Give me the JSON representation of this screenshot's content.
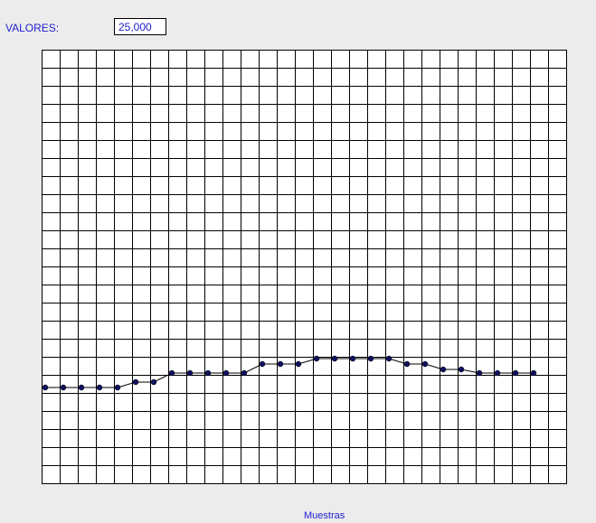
{
  "header": {
    "label": "VALORES:",
    "value": "25,000"
  },
  "chart_data": {
    "type": "line",
    "xlabel": "Muestras",
    "ylabel": "",
    "title": "",
    "grid": true,
    "grid_cols": 29,
    "grid_rows": 24,
    "x": [
      0,
      1,
      2,
      3,
      4,
      5,
      6,
      7,
      8,
      9,
      10,
      11,
      12,
      13,
      14,
      15,
      16,
      17,
      18,
      19,
      20,
      21,
      22,
      23,
      24,
      25,
      26,
      27
    ],
    "values": [
      5.3,
      5.3,
      5.3,
      5.3,
      5.3,
      5.6,
      5.6,
      6.1,
      6.1,
      6.1,
      6.1,
      6.1,
      6.6,
      6.6,
      6.6,
      6.9,
      6.9,
      6.9,
      6.9,
      6.9,
      6.6,
      6.6,
      6.3,
      6.3,
      6.1,
      6.1,
      6.1,
      6.1
    ],
    "xlim": [
      0,
      29
    ],
    "ylim": [
      0,
      24
    ],
    "line_color": "#000000",
    "marker_color": "#101060"
  }
}
